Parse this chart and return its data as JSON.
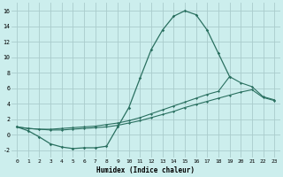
{
  "xlabel": "Humidex (Indice chaleur)",
  "bg_color": "#cceeed",
  "grid_color": "#aacccc",
  "line_color": "#2a7060",
  "xlim": [
    -0.5,
    23.5
  ],
  "ylim": [
    -3,
    17
  ],
  "xticks": [
    0,
    1,
    2,
    3,
    4,
    5,
    6,
    7,
    8,
    9,
    10,
    11,
    12,
    13,
    14,
    15,
    16,
    17,
    18,
    19,
    20,
    21,
    22,
    23
  ],
  "yticks": [
    -2,
    0,
    2,
    4,
    6,
    8,
    10,
    12,
    14,
    16
  ],
  "series1_x": [
    0,
    1,
    2,
    3,
    4,
    5,
    6,
    7,
    8,
    9,
    10,
    11,
    12,
    13,
    14,
    15,
    16,
    17,
    18,
    19
  ],
  "series1_y": [
    1.0,
    0.5,
    -0.3,
    -1.2,
    -1.6,
    -1.8,
    -1.7,
    -1.7,
    -1.5,
    1.0,
    3.5,
    7.3,
    11.0,
    13.5,
    15.3,
    16.0,
    15.5,
    13.5,
    10.5,
    7.5
  ],
  "series2_x": [
    0,
    1,
    2,
    3,
    4,
    5,
    6,
    7,
    8,
    9,
    10,
    11,
    12,
    13,
    14,
    15,
    16,
    17,
    18,
    19,
    20,
    21,
    22,
    23
  ],
  "series2_y": [
    1.0,
    0.8,
    0.7,
    0.7,
    0.8,
    0.9,
    1.0,
    1.1,
    1.3,
    1.5,
    1.8,
    2.2,
    2.7,
    3.2,
    3.7,
    4.2,
    4.7,
    5.2,
    5.6,
    7.5,
    6.7,
    6.2,
    4.9,
    4.5
  ],
  "series3_x": [
    0,
    1,
    2,
    3,
    4,
    5,
    6,
    7,
    8,
    9,
    10,
    11,
    12,
    13,
    14,
    15,
    16,
    17,
    18,
    19,
    20,
    21,
    22,
    23
  ],
  "series3_y": [
    1.0,
    0.8,
    0.7,
    0.6,
    0.6,
    0.7,
    0.8,
    0.9,
    1.0,
    1.2,
    1.5,
    1.8,
    2.2,
    2.6,
    3.0,
    3.5,
    3.9,
    4.3,
    4.7,
    5.1,
    5.5,
    5.8,
    4.8,
    4.4
  ]
}
